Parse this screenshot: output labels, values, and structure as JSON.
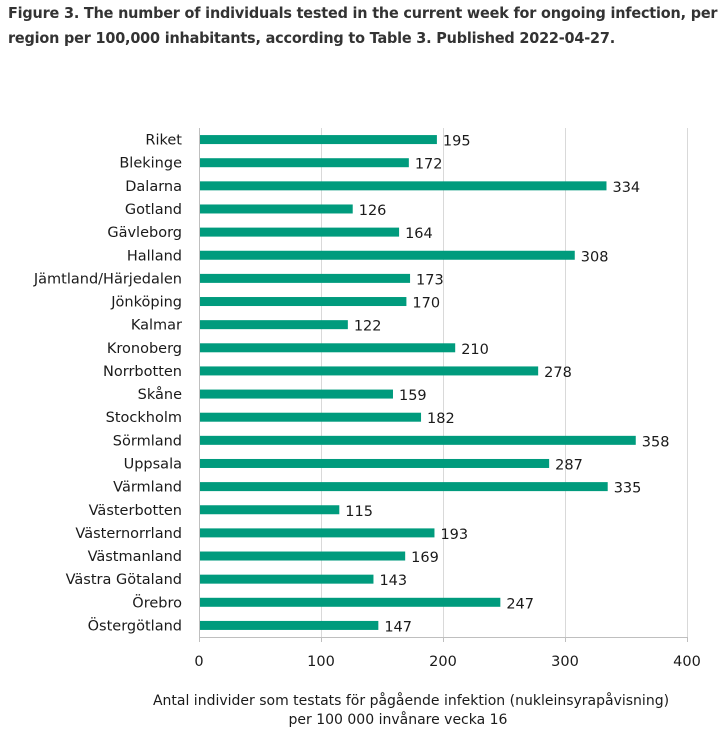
{
  "figure": {
    "title": "Figure 3. The number of individuals tested in the current week for ongoing infection, per region per 100,000 inhabitants, according to Table 3. Published 2022-04-27."
  },
  "colors": {
    "bar": "#009b7d",
    "gridline": "#d9d9d9",
    "axis": "#bfbfbf",
    "text": "#1a1a1a"
  },
  "chart_data": {
    "type": "bar",
    "orientation": "horizontal",
    "title": "",
    "categories": [
      "Riket",
      "Blekinge",
      "Dalarna",
      "Gotland",
      "Gävleborg",
      "Halland",
      "Jämtland/Härjedalen",
      "Jönköping",
      "Kalmar",
      "Kronoberg",
      "Norrbotten",
      "Skåne",
      "Stockholm",
      "Sörmland",
      "Uppsala",
      "Värmland",
      "Västerbotten",
      "Västernorrland",
      "Västmanland",
      "Västra Götaland",
      "Örebro",
      "Östergötland"
    ],
    "values": [
      195,
      172,
      334,
      126,
      164,
      308,
      173,
      170,
      122,
      210,
      278,
      159,
      182,
      358,
      287,
      335,
      115,
      193,
      169,
      143,
      247,
      147
    ],
    "value_labels": [
      "195",
      "172",
      "334",
      "126",
      "164",
      "308",
      "173",
      "170",
      "122",
      "210",
      "278",
      "159",
      "182",
      "358",
      "287",
      "335",
      "115",
      "193",
      "169",
      "143",
      "247",
      "147"
    ],
    "xlabel_lines": [
      "Antal individer som testats för pågående infektion (nukleinsyrapåvisning)",
      "per 100 000 invånare vecka 16"
    ],
    "ylabel": "",
    "xlim": [
      0,
      400
    ],
    "xticks": [
      0,
      100,
      200,
      300,
      400
    ],
    "xtick_labels": [
      "0",
      "100",
      "200",
      "300",
      "400"
    ],
    "grid": "vertical",
    "legend": "none"
  }
}
